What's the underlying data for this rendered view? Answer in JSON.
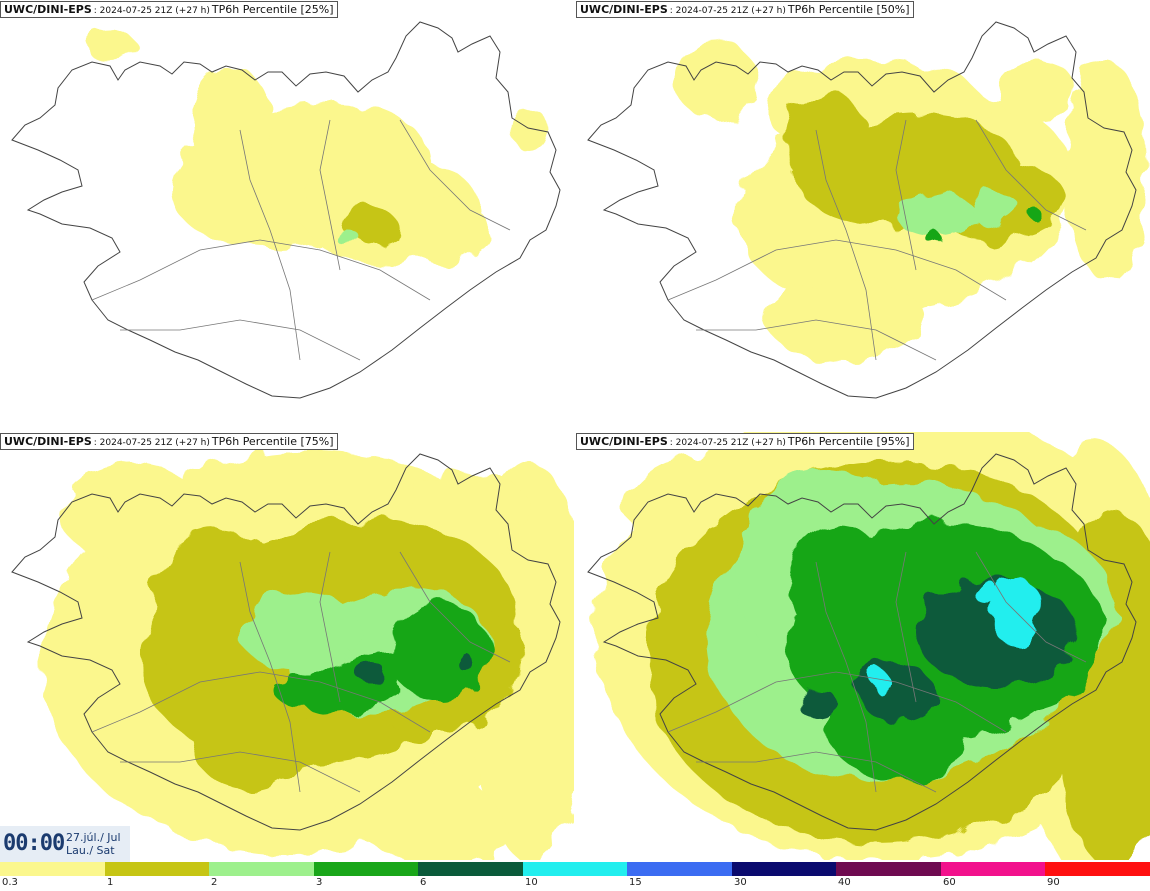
{
  "panels": [
    {
      "source": "UWC/DINI-EPS",
      "run": ": 2024-07-25 21Z (+27 h)",
      "field": "TP6h Percentile [25%]",
      "level": 0
    },
    {
      "source": "UWC/DINI-EPS",
      "run": ": 2024-07-25 21Z (+27 h)",
      "field": "TP6h Percentile [50%]",
      "level": 1
    },
    {
      "source": "UWC/DINI-EPS",
      "run": ": 2024-07-25 21Z (+27 h)",
      "field": "TP6h Percentile [75%]",
      "level": 2
    },
    {
      "source": "UWC/DINI-EPS",
      "run": ": 2024-07-25 21Z (+27 h)",
      "field": "TP6h Percentile [95%]",
      "level": 3
    }
  ],
  "time": {
    "clock": "00:00",
    "date_line1": "27.júl./ Jul",
    "date_line2": "Lau./ Sat"
  },
  "legend": {
    "labels": [
      "0.3",
      "1",
      "2",
      "3",
      "6",
      "10",
      "15",
      "30",
      "40",
      "60",
      "90"
    ],
    "colors": [
      "#fbf78d",
      "#c6c514",
      "#9df08c",
      "#19a619",
      "#0a5a3a",
      "#22eeee",
      "#3b6cf2",
      "#0a0a6e",
      "#6e0a50",
      "#f2118c",
      "#ff1010"
    ]
  },
  "colors": {
    "land_outline": "#444444",
    "roads": "#777777",
    "text": "#1b3b6f"
  }
}
